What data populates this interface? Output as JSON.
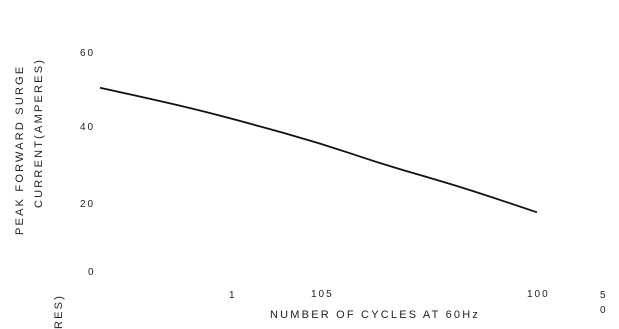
{
  "chart_data": {
    "type": "line",
    "ylabel": "PEAK FORWARD SURGE",
    "ylabel_line2": "CURRENT(AMPERES)",
    "xlabel": "NUMBER OF CYCLES AT 60Hz",
    "y_ticks": [
      "60",
      "40",
      "20",
      "0"
    ],
    "ylim": [
      0,
      60
    ],
    "x_tick_labels": [
      "1",
      "105",
      "100",
      "5\n0"
    ],
    "clipped_fragment": "RES)",
    "grid": false,
    "legend": "none",
    "series": [
      {
        "x": [
          1,
          2,
          3,
          5,
          10,
          20,
          30,
          50,
          100
        ],
        "y": [
          50,
          46,
          43.5,
          40,
          35,
          29,
          26,
          22,
          16
        ]
      }
    ],
    "line_color": "#111111"
  }
}
